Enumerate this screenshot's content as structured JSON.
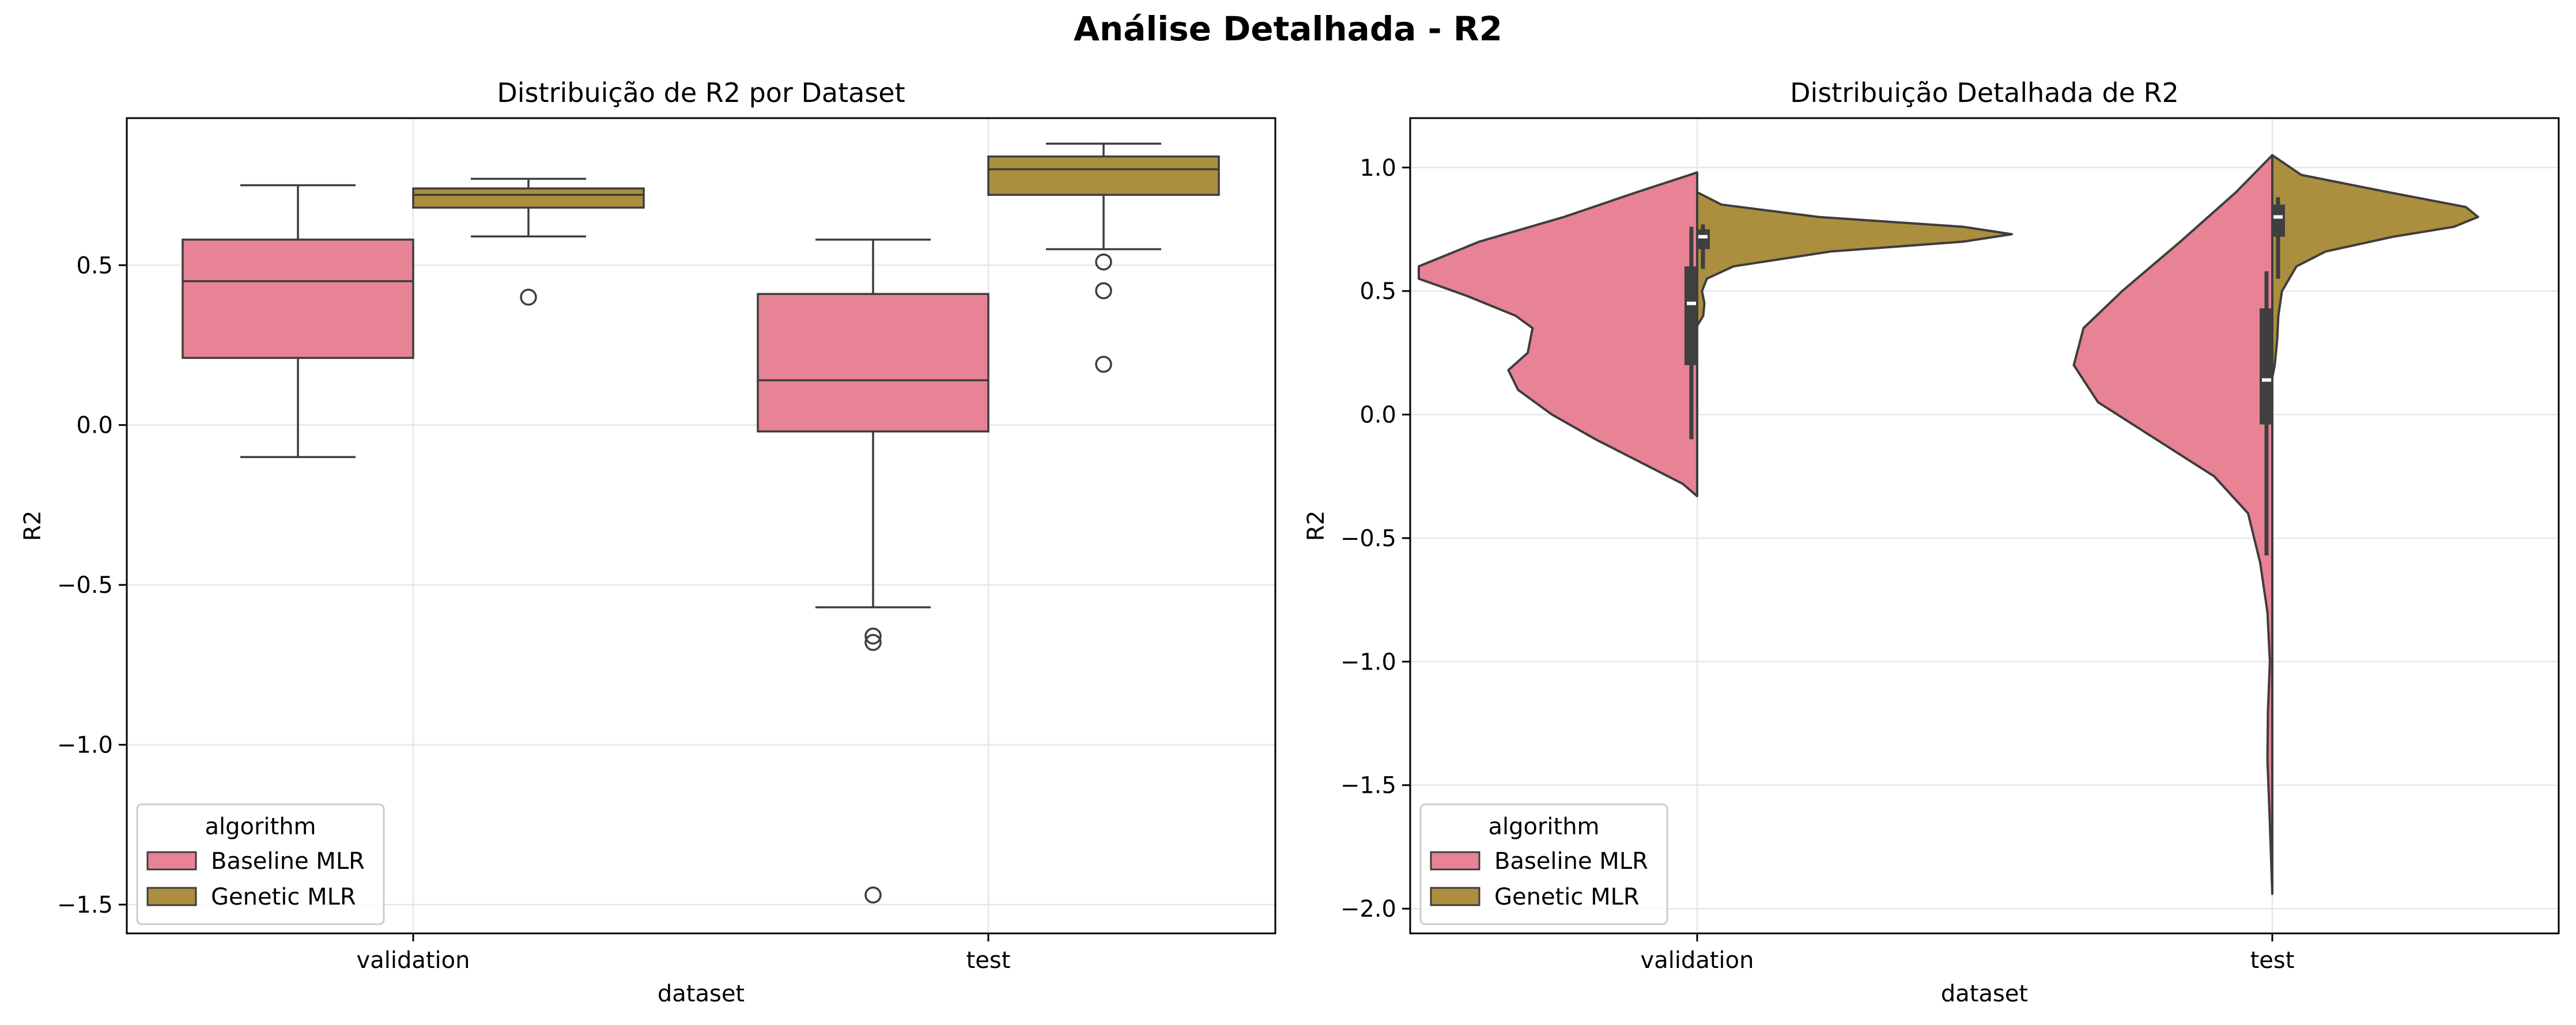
{
  "figure": {
    "title": "Análise Detalhada - R2"
  },
  "colors": {
    "baseline": "#e88295",
    "genetic": "#ac8e3f",
    "edge": "#3d3d3d",
    "grid": "#e6e6e6"
  },
  "chart_data": [
    {
      "type": "box",
      "title": "Distribuição de R2 por Dataset",
      "xlabel": "dataset",
      "ylabel": "R2",
      "categories": [
        "validation",
        "test"
      ],
      "ylim": [
        -1.59,
        0.96
      ],
      "yticks": [
        0.5,
        0.0,
        -0.5,
        -1.0,
        -1.5
      ],
      "ytick_labels": [
        "0.5",
        "0.0",
        "−0.5",
        "−1.0",
        "−1.5"
      ],
      "grid": true,
      "legend": {
        "title": "algorithm",
        "placement": "lower-left",
        "entries": [
          "Baseline MLR",
          "Genetic MLR"
        ]
      },
      "series": [
        {
          "name": "Baseline MLR",
          "boxes": [
            {
              "category": "validation",
              "whisker_low": -0.1,
              "q1": 0.21,
              "median": 0.45,
              "q3": 0.58,
              "whisker_high": 0.75,
              "outliers": []
            },
            {
              "category": "test",
              "whisker_low": -0.57,
              "q1": -0.02,
              "median": 0.14,
              "q3": 0.41,
              "whisker_high": 0.58,
              "outliers": [
                -0.66,
                -0.68,
                -1.47
              ]
            }
          ]
        },
        {
          "name": "Genetic MLR",
          "boxes": [
            {
              "category": "validation",
              "whisker_low": 0.59,
              "q1": 0.68,
              "median": 0.72,
              "q3": 0.74,
              "whisker_high": 0.77,
              "outliers": [
                0.4
              ]
            },
            {
              "category": "test",
              "whisker_low": 0.55,
              "q1": 0.72,
              "median": 0.8,
              "q3": 0.84,
              "whisker_high": 0.88,
              "outliers": [
                0.51,
                0.42,
                0.19
              ]
            }
          ]
        }
      ]
    },
    {
      "type": "violin",
      "title": "Distribuição Detalhada de R2",
      "xlabel": "dataset",
      "ylabel": "R2",
      "categories": [
        "validation",
        "test"
      ],
      "ylim": [
        -2.1,
        1.2
      ],
      "yticks": [
        1.0,
        0.5,
        0.0,
        -0.5,
        -1.0,
        -1.5,
        -2.0
      ],
      "ytick_labels": [
        "1.0",
        "0.5",
        "0.0",
        "−0.5",
        "−1.0",
        "−1.5",
        "−2.0"
      ],
      "grid": true,
      "split": true,
      "legend": {
        "title": "algorithm",
        "placement": "lower-left",
        "entries": [
          "Baseline MLR",
          "Genetic MLR"
        ]
      },
      "series": [
        {
          "name": "Baseline MLR",
          "violins": [
            {
              "category": "validation",
              "density": [
                [
                  0.98,
                  0.0
                ],
                [
                  0.9,
                  0.25
                ],
                [
                  0.8,
                  0.55
                ],
                [
                  0.7,
                  0.9
                ],
                [
                  0.6,
                  1.15
                ],
                [
                  0.55,
                  1.15
                ],
                [
                  0.48,
                  0.95
                ],
                [
                  0.4,
                  0.75
                ],
                [
                  0.35,
                  0.68
                ],
                [
                  0.25,
                  0.7
                ],
                [
                  0.18,
                  0.78
                ],
                [
                  0.1,
                  0.74
                ],
                [
                  0.0,
                  0.6
                ],
                [
                  -0.1,
                  0.42
                ],
                [
                  -0.2,
                  0.22
                ],
                [
                  -0.28,
                  0.06
                ],
                [
                  -0.33,
                  0.0
                ]
              ],
              "box": {
                "q1": 0.2,
                "median": 0.45,
                "q3": 0.6,
                "whisker_low": -0.1,
                "whisker_high": 0.76
              }
            },
            {
              "category": "test",
              "density": [
                [
                  1.05,
                  0.0
                ],
                [
                  0.9,
                  0.15
                ],
                [
                  0.7,
                  0.38
                ],
                [
                  0.5,
                  0.62
                ],
                [
                  0.35,
                  0.78
                ],
                [
                  0.2,
                  0.82
                ],
                [
                  0.05,
                  0.72
                ],
                [
                  -0.1,
                  0.48
                ],
                [
                  -0.25,
                  0.24
                ],
                [
                  -0.4,
                  0.1
                ],
                [
                  -0.6,
                  0.05
                ],
                [
                  -0.8,
                  0.02
                ],
                [
                  -1.0,
                  0.01
                ],
                [
                  -1.2,
                  0.018
                ],
                [
                  -1.4,
                  0.02
                ],
                [
                  -1.6,
                  0.012
                ],
                [
                  -1.8,
                  0.005
                ],
                [
                  -1.94,
                  0.0
                ]
              ],
              "box": {
                "q1": -0.04,
                "median": 0.14,
                "q3": 0.43,
                "whisker_low": -0.57,
                "whisker_high": 0.58
              }
            }
          ]
        },
        {
          "name": "Genetic MLR",
          "violins": [
            {
              "category": "validation",
              "density": [
                [
                  0.9,
                  0.0
                ],
                [
                  0.85,
                  0.1
                ],
                [
                  0.8,
                  0.5
                ],
                [
                  0.76,
                  1.1
                ],
                [
                  0.73,
                  1.3
                ],
                [
                  0.7,
                  1.1
                ],
                [
                  0.66,
                  0.55
                ],
                [
                  0.6,
                  0.15
                ],
                [
                  0.55,
                  0.04
                ],
                [
                  0.5,
                  0.02
                ],
                [
                  0.45,
                  0.03
                ],
                [
                  0.4,
                  0.025
                ],
                [
                  0.36,
                  0.0
                ]
              ],
              "box": {
                "q1": 0.67,
                "median": 0.72,
                "q3": 0.75,
                "whisker_low": 0.59,
                "whisker_high": 0.77
              }
            },
            {
              "category": "test",
              "density": [
                [
                  1.05,
                  0.0
                ],
                [
                  0.97,
                  0.12
                ],
                [
                  0.9,
                  0.48
                ],
                [
                  0.84,
                  0.8
                ],
                [
                  0.8,
                  0.85
                ],
                [
                  0.76,
                  0.75
                ],
                [
                  0.72,
                  0.5
                ],
                [
                  0.66,
                  0.22
                ],
                [
                  0.6,
                  0.1
                ],
                [
                  0.5,
                  0.04
                ],
                [
                  0.4,
                  0.025
                ],
                [
                  0.3,
                  0.02
                ],
                [
                  0.2,
                  0.01
                ],
                [
                  0.15,
                  0.0
                ]
              ],
              "box": {
                "q1": 0.72,
                "median": 0.8,
                "q3": 0.85,
                "whisker_low": 0.55,
                "whisker_high": 0.88
              }
            }
          ]
        }
      ]
    }
  ]
}
